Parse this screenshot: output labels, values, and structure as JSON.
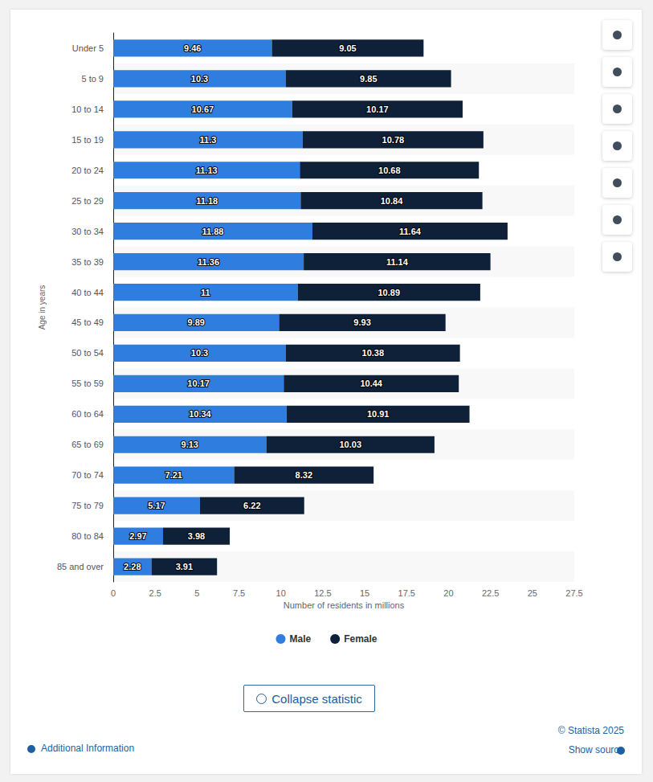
{
  "chart_data": {
    "type": "bar",
    "orientation": "horizontal",
    "stacked": true,
    "data_labels": true,
    "grid": false,
    "legend": "bottom",
    "xlabel": "Number of residents in millions",
    "ylabel": "Age in years",
    "categories": [
      "Under 5",
      "5 to 9",
      "10 to 14",
      "15 to 19",
      "20 to 24",
      "25 to 29",
      "30 to 34",
      "35 to 39",
      "40 to 44",
      "45 to 49",
      "50 to 54",
      "55 to 59",
      "60 to 64",
      "65 to 69",
      "70 to 74",
      "75 to 79",
      "80 to 84",
      "85 and over"
    ],
    "series": [
      {
        "name": "Male",
        "color": "#2f7ddf",
        "values": [
          9.46,
          10.3,
          10.67,
          11.3,
          11.13,
          11.18,
          11.88,
          11.36,
          11,
          9.89,
          10.3,
          10.17,
          10.34,
          9.13,
          7.21,
          5.17,
          2.97,
          2.28
        ]
      },
      {
        "name": "Female",
        "color": "#0f2139",
        "values": [
          9.05,
          9.85,
          10.17,
          10.78,
          10.68,
          10.84,
          11.64,
          11.14,
          10.89,
          9.93,
          10.38,
          10.44,
          10.91,
          10.03,
          8.32,
          6.22,
          3.98,
          3.91
        ]
      }
    ],
    "xlim": [
      0,
      27.5
    ],
    "xticks": [
      0,
      2.5,
      5,
      7.5,
      10,
      12.5,
      15,
      17.5,
      20,
      22.5,
      25,
      27.5
    ]
  },
  "page": {
    "button": "Collapse statistic",
    "copyright": "© Statista 2025",
    "additional_information": "Additional Information",
    "source_link": "Show source"
  }
}
